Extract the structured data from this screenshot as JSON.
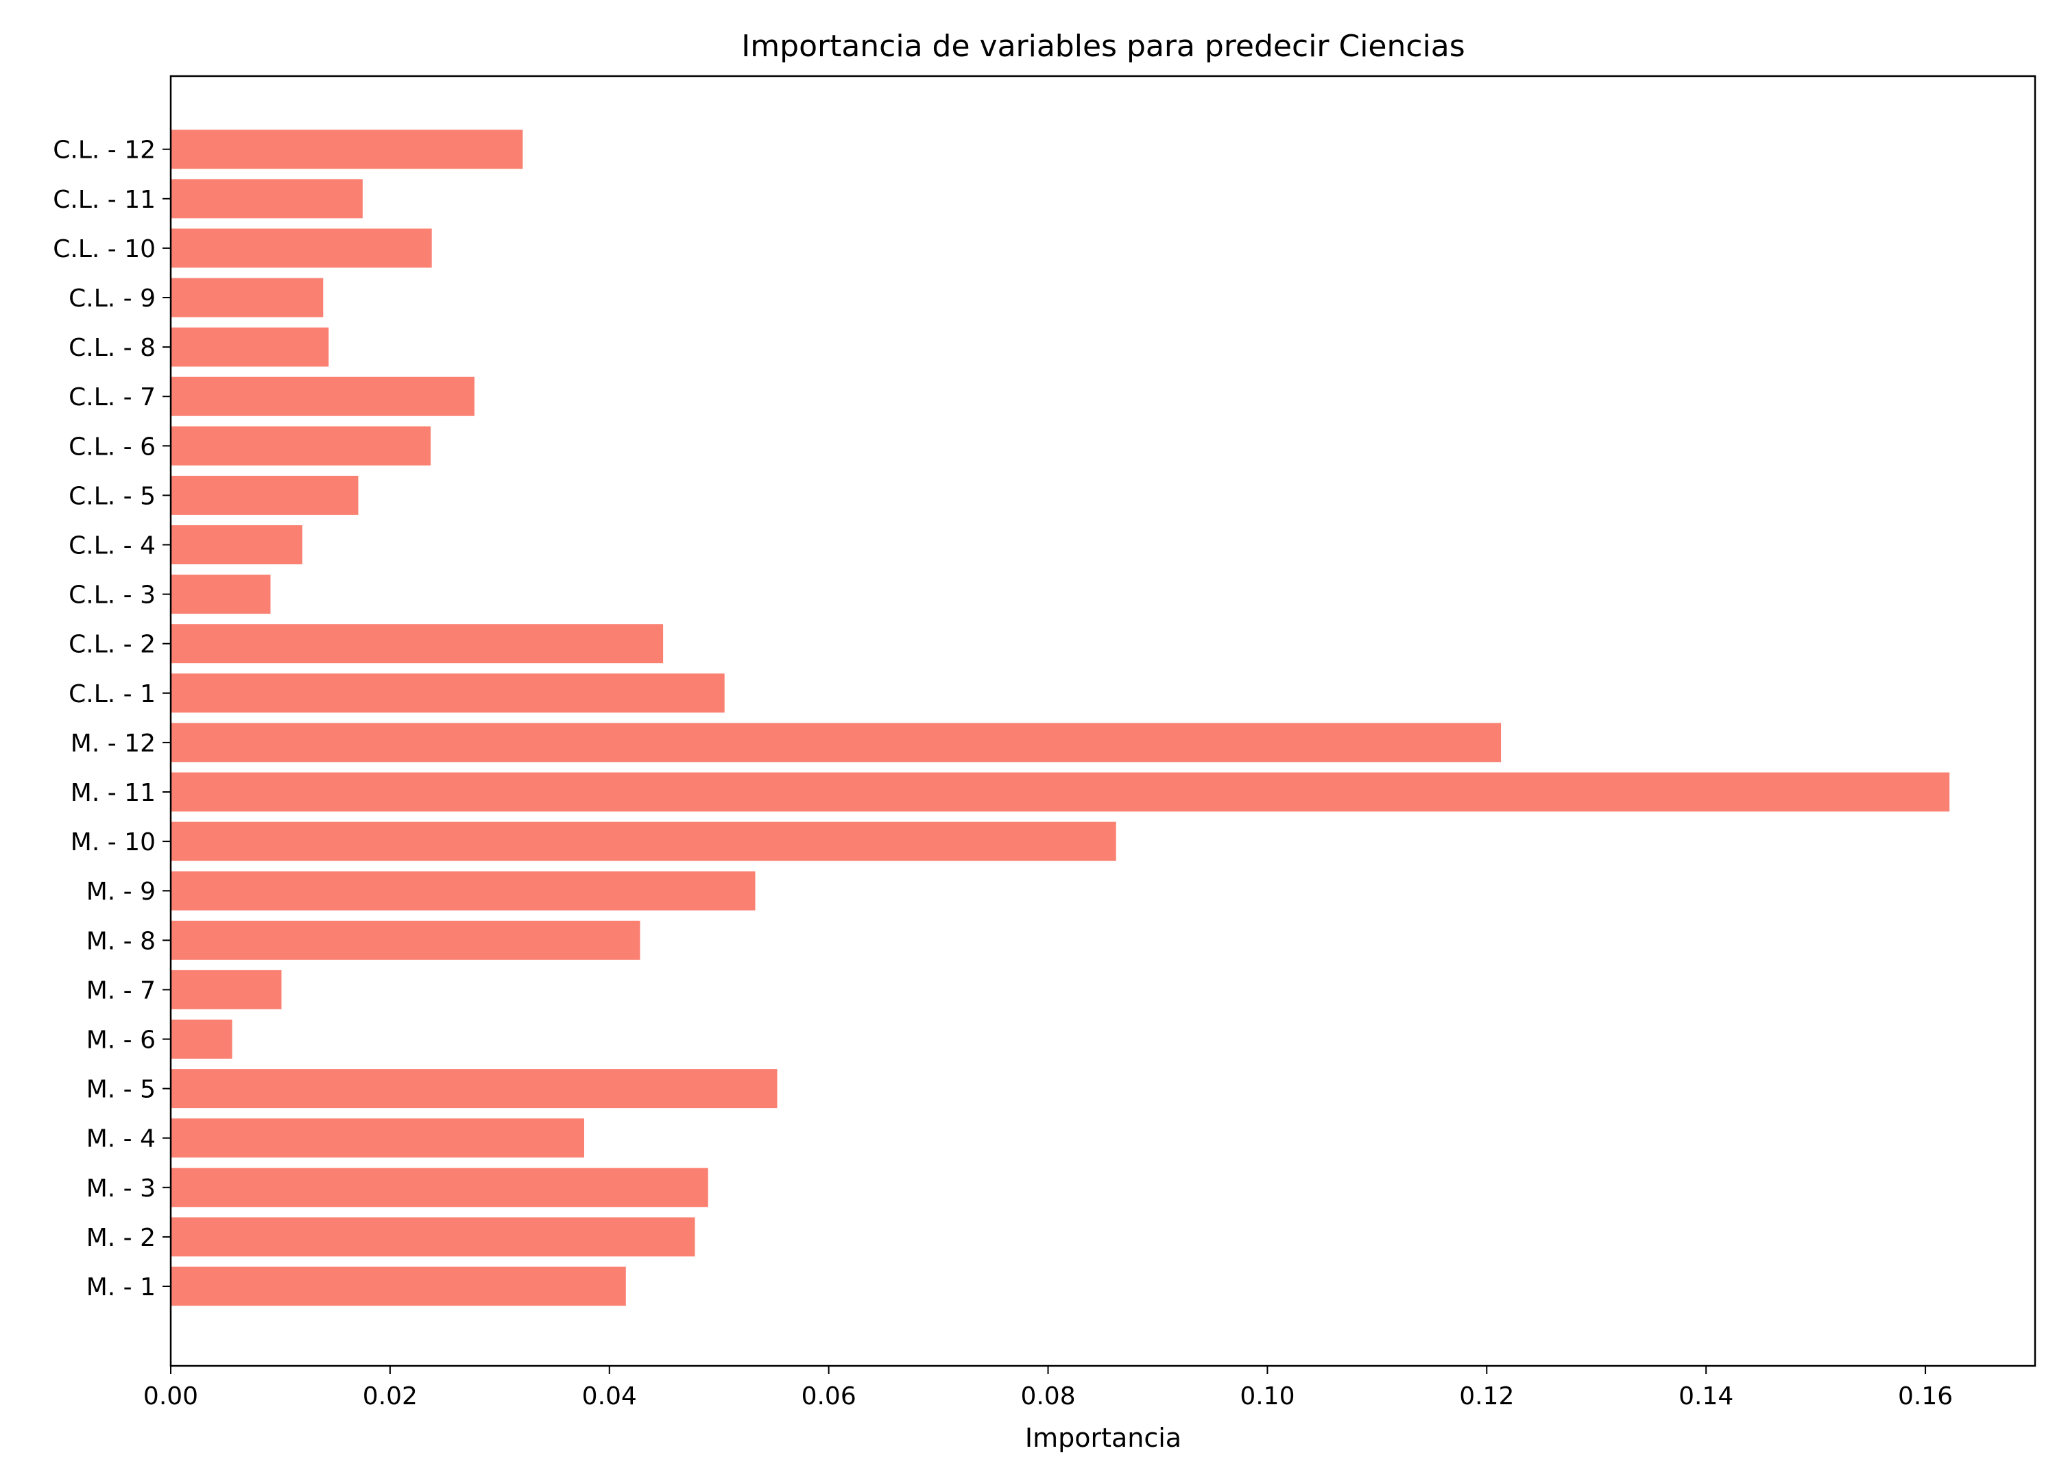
{
  "chart_data": {
    "type": "bar",
    "orientation": "horizontal",
    "title": "Importancia de variables para predecir Ciencias",
    "xlabel": "Importancia",
    "ylabel": "",
    "xlim": [
      0,
      0.17
    ],
    "xticks": [
      "0.00",
      "0.02",
      "0.04",
      "0.06",
      "0.08",
      "0.10",
      "0.12",
      "0.14",
      "0.16"
    ],
    "bar_color": "#FA8072",
    "grid": false,
    "legend": "none",
    "categories": [
      "M. - 1",
      "M. - 2",
      "M. - 3",
      "M. - 4",
      "M. - 5",
      "M. - 6",
      "M. - 7",
      "M. - 8",
      "M. - 9",
      "M. - 10",
      "M. - 11",
      "M. - 12",
      "C.L. - 1",
      "C.L. - 2",
      "C.L. - 3",
      "C.L. - 4",
      "C.L. - 5",
      "C.L. - 6",
      "C.L. - 7",
      "C.L. - 8",
      "C.L. - 9",
      "C.L. - 10",
      "C.L. - 11",
      "C.L. - 12"
    ],
    "values": [
      0.0415,
      0.0478,
      0.049,
      0.0377,
      0.0553,
      0.0056,
      0.0101,
      0.0428,
      0.0533,
      0.0862,
      0.1622,
      0.1213,
      0.0505,
      0.0449,
      0.0091,
      0.012,
      0.0171,
      0.0237,
      0.0277,
      0.0144,
      0.0139,
      0.0238,
      0.0175,
      0.0321
    ]
  }
}
